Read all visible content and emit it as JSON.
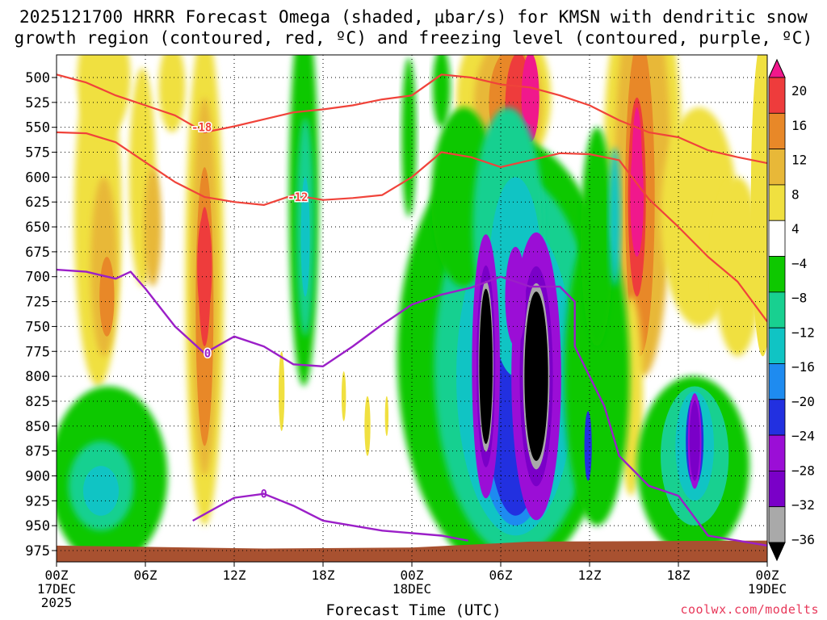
{
  "chart_data": {
    "type": "heatmap",
    "title_line1": "2025121700 HRRR Forecast Omega (shaded, μbar/s) for KMSN with dendritic snow",
    "title_line2": "growth region (contoured, red, ºC) and freezing level (contoured, purple, ºC)",
    "xlabel": "Forecast Time (UTC)",
    "ylabel": "Pressure (hPa)",
    "x_range_hours": [
      0,
      48
    ],
    "x_ticks": [
      {
        "h": 0,
        "label": "00Z"
      },
      {
        "h": 6,
        "label": "06Z"
      },
      {
        "h": 12,
        "label": "12Z"
      },
      {
        "h": 18,
        "label": "18Z"
      },
      {
        "h": 24,
        "label": "00Z"
      },
      {
        "h": 30,
        "label": "06Z"
      },
      {
        "h": 36,
        "label": "12Z"
      },
      {
        "h": 42,
        "label": "18Z"
      },
      {
        "h": 48,
        "label": "00Z"
      }
    ],
    "date_labels": [
      {
        "h": 0,
        "text": "17DEC"
      },
      {
        "h": 0,
        "text": "2025",
        "line": 2
      },
      {
        "h": 24,
        "text": "18DEC"
      },
      {
        "h": 48,
        "text": "19DEC"
      }
    ],
    "y_range": [
      980,
      480
    ],
    "y_ticks": [
      500,
      525,
      550,
      575,
      600,
      625,
      650,
      675,
      700,
      725,
      750,
      775,
      800,
      825,
      850,
      875,
      900,
      925,
      950,
      975
    ],
    "grid": true,
    "colorbar": {
      "levels": [
        -36,
        -32,
        -28,
        -24,
        -20,
        -16,
        -12,
        -8,
        -4,
        4,
        8,
        12,
        16,
        20
      ],
      "colors": [
        "#000000",
        "#a9a9a9",
        "#7a00c8",
        "#9b0ed6",
        "#2230e0",
        "#1e8bf0",
        "#10c4c4",
        "#18d090",
        "#0ec800",
        "#ffffff",
        "#f0e040",
        "#e8b838",
        "#e88828",
        "#ee3c3c",
        "#f0188c"
      ],
      "labels": [
        "20",
        "16",
        "12",
        "8",
        "4",
        "−4",
        "−8",
        "−12",
        "−16",
        "−20",
        "−24",
        "−28",
        "−32",
        "−36"
      ]
    },
    "omega_features": [
      {
        "name": "updraft-black-1",
        "h": 29.0,
        "p": 790,
        "w": 0.45,
        "hp": 78,
        "value": -38
      },
      {
        "name": "updraft-black-2",
        "h": 32.4,
        "p": 800,
        "w": 0.8,
        "hp": 85,
        "value": -38
      },
      {
        "name": "updraft-core-3",
        "h": 43.1,
        "p": 865,
        "w": 0.35,
        "hp": 40,
        "value": -28
      },
      {
        "name": "sinking-max-1",
        "h": 10.0,
        "p": 690,
        "w": 0.5,
        "hp": 90,
        "value": 16
      },
      {
        "name": "sinking-max-2",
        "h": 39.2,
        "p": 620,
        "w": 0.45,
        "hp": 100,
        "value": 20
      },
      {
        "name": "sinking-max-3",
        "h": 32.0,
        "p": 520,
        "w": 0.6,
        "hp": 45,
        "value": 22
      }
    ],
    "contours": {
      "dgz_minus18_upper": {
        "color": "#f0433a",
        "label": "-18",
        "label_at": [
          9.8,
          550
        ],
        "points": [
          [
            0,
            497
          ],
          [
            2,
            505
          ],
          [
            4,
            518
          ],
          [
            6,
            528
          ],
          [
            8,
            538
          ],
          [
            10,
            555
          ],
          [
            12,
            549
          ],
          [
            14,
            542
          ],
          [
            16,
            535
          ],
          [
            18,
            532
          ],
          [
            20,
            528
          ],
          [
            22,
            522
          ],
          [
            24,
            518
          ],
          [
            26,
            497
          ],
          [
            28,
            500
          ],
          [
            30,
            507
          ],
          [
            32,
            510
          ],
          [
            34,
            518
          ],
          [
            36,
            528
          ],
          [
            38,
            543
          ],
          [
            40,
            555
          ],
          [
            42,
            560
          ],
          [
            44,
            573
          ],
          [
            46,
            580
          ],
          [
            48,
            586
          ]
        ]
      },
      "dgz_minus12": {
        "color": "#f0433a",
        "label": "-12",
        "label_at": [
          16.3,
          620
        ],
        "points": [
          [
            0,
            555
          ],
          [
            2,
            556
          ],
          [
            4,
            565
          ],
          [
            6,
            585
          ],
          [
            8,
            605
          ],
          [
            10,
            620
          ],
          [
            12,
            625
          ],
          [
            14,
            628
          ],
          [
            16,
            618
          ],
          [
            18,
            623
          ],
          [
            20,
            621
          ],
          [
            22,
            618
          ],
          [
            24,
            600
          ],
          [
            26,
            575
          ],
          [
            28,
            580
          ],
          [
            30,
            590
          ],
          [
            32,
            583
          ],
          [
            34,
            576
          ],
          [
            36,
            577
          ],
          [
            38,
            583
          ],
          [
            40,
            622
          ],
          [
            42,
            650
          ],
          [
            44,
            680
          ],
          [
            46,
            705
          ],
          [
            48,
            745
          ]
        ]
      },
      "freezing_level": {
        "color": "#9b1fc8",
        "label": "0",
        "labels_at": [
          [
            10.2,
            777
          ],
          [
            14,
            918
          ]
        ],
        "points": [
          [
            0,
            693
          ],
          [
            2,
            695
          ],
          [
            4,
            702
          ],
          [
            5,
            695
          ],
          [
            6,
            712
          ],
          [
            8,
            750
          ],
          [
            10,
            777
          ],
          [
            12,
            760
          ],
          [
            14,
            770
          ],
          [
            16,
            788
          ],
          [
            18,
            790
          ],
          [
            20,
            770
          ],
          [
            22,
            748
          ],
          [
            24,
            728
          ],
          [
            26,
            718
          ],
          [
            28,
            711
          ],
          [
            30,
            700
          ],
          [
            32,
            710
          ],
          [
            34,
            710
          ],
          [
            35,
            725
          ],
          [
            35,
            770
          ],
          [
            36,
            800
          ],
          [
            37,
            830
          ],
          [
            38,
            880
          ],
          [
            40,
            910
          ],
          [
            42,
            920
          ],
          [
            44,
            960
          ],
          [
            48,
            970
          ]
        ]
      }
    },
    "terrain": {
      "color": "#a85130",
      "surface_hpa": 970
    }
  },
  "credit": "coolwx.com/modelts"
}
